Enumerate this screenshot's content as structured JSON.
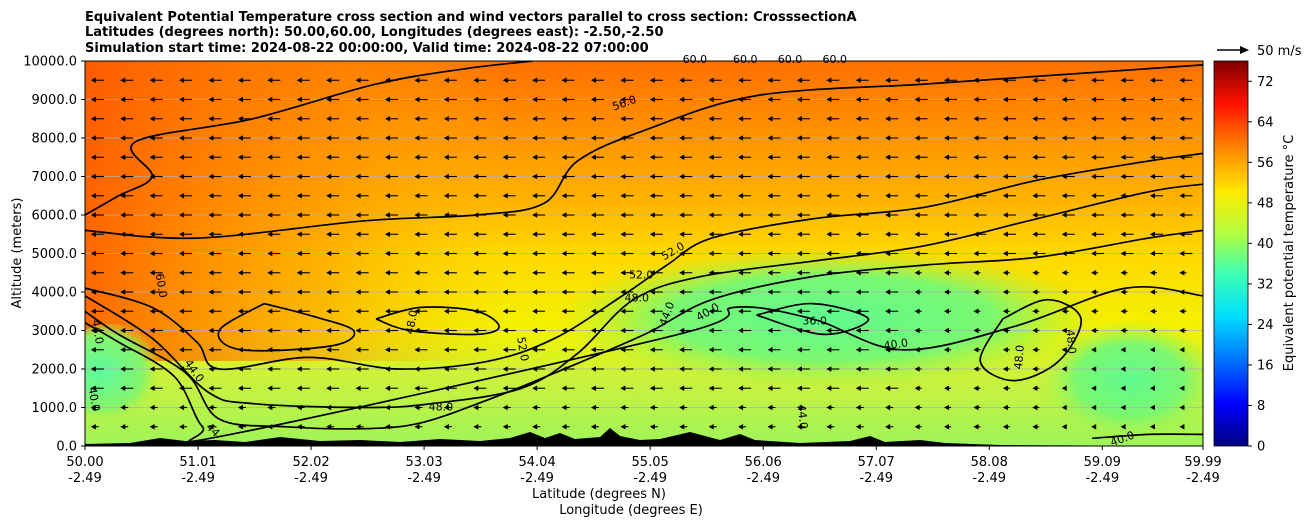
{
  "chart_data": {
    "type": "contour",
    "title_lines": [
      "Equivalent Potential Temperature cross section and wind vectors parallel to cross section: CrosssectionA",
      "Latitudes (degrees north): 50.00,60.00, Longitudes (degrees east): -2.50,-2.50",
      "Simulation start time: 2024-08-22 00:00:00, Valid time: 2024-08-22 07:00:00"
    ],
    "xlabel_primary": "Latitude (degrees N)",
    "xlabel_secondary": "Longitude (degrees E)",
    "ylabel": "Altitude (meters)",
    "x_ticks": [
      {
        "lat": "50.00",
        "lon": "-2.49",
        "value": 50.0
      },
      {
        "lat": "51.01",
        "lon": "-2.49",
        "value": 51.01
      },
      {
        "lat": "52.02",
        "lon": "-2.49",
        "value": 52.02
      },
      {
        "lat": "53.03",
        "lon": "-2.49",
        "value": 53.03
      },
      {
        "lat": "54.04",
        "lon": "-2.49",
        "value": 54.04
      },
      {
        "lat": "55.05",
        "lon": "-2.49",
        "value": 55.05
      },
      {
        "lat": "56.06",
        "lon": "-2.49",
        "value": 56.06
      },
      {
        "lat": "57.07",
        "lon": "-2.49",
        "value": 57.07
      },
      {
        "lat": "58.08",
        "lon": "-2.49",
        "value": 58.08
      },
      {
        "lat": "59.09",
        "lon": "-2.49",
        "value": 59.09
      },
      {
        "lat": "59.99",
        "lon": "-2.49",
        "value": 59.99
      }
    ],
    "y_ticks": [
      "0.0",
      "1000.0",
      "2000.0",
      "3000.0",
      "4000.0",
      "5000.0",
      "6000.0",
      "7000.0",
      "8000.0",
      "9000.0",
      "10000.0"
    ],
    "xlim": [
      50.0,
      59.99
    ],
    "ylim": [
      0,
      10000
    ],
    "grid": "horizontal",
    "colorbar": {
      "label": "Equivalent potential temperature °C",
      "ticks": [
        "0",
        "8",
        "16",
        "24",
        "32",
        "40",
        "48",
        "56",
        "64",
        "72"
      ],
      "range": [
        0,
        76
      ]
    },
    "wind_key": {
      "label": "50 m/s",
      "value": 50
    },
    "contour_levels": [
      36,
      40,
      44,
      48,
      52,
      56,
      60
    ],
    "contour_labels": [
      {
        "text": "60.0",
        "lat": 50.65,
        "alt": 4150,
        "rot": 80
      },
      {
        "text": "44.0",
        "lat": 50.08,
        "alt": 2950,
        "rot": 80
      },
      {
        "text": "40.0",
        "lat": 50.05,
        "alt": 1200,
        "rot": 80
      },
      {
        "text": "44.0",
        "lat": 50.95,
        "alt": 1900,
        "rot": 55
      },
      {
        "text": "44",
        "lat": 51.12,
        "alt": 350,
        "rot": 45
      },
      {
        "text": "48.0",
        "lat": 52.95,
        "alt": 3200,
        "rot": -80
      },
      {
        "text": "48.0",
        "lat": 53.18,
        "alt": 920,
        "rot": 0
      },
      {
        "text": "52.0",
        "lat": 53.88,
        "alt": 2500,
        "rot": 80
      },
      {
        "text": "52.0",
        "lat": 54.97,
        "alt": 4350,
        "rot": 0
      },
      {
        "text": "52.0",
        "lat": 55.27,
        "alt": 4980,
        "rot": -30
      },
      {
        "text": "48.0",
        "lat": 54.93,
        "alt": 3750,
        "rot": 0
      },
      {
        "text": "44.0",
        "lat": 55.23,
        "alt": 3400,
        "rot": -70
      },
      {
        "text": "40.0",
        "lat": 55.58,
        "alt": 3400,
        "rot": -30
      },
      {
        "text": "56.0",
        "lat": 54.83,
        "alt": 8820,
        "rot": -20
      },
      {
        "text": "36.0",
        "lat": 56.52,
        "alt": 3150,
        "rot": 0
      },
      {
        "text": "40.0",
        "lat": 57.25,
        "alt": 2550,
        "rot": -8
      },
      {
        "text": "44.0",
        "lat": 56.38,
        "alt": 750,
        "rot": 85
      },
      {
        "text": "48.0",
        "lat": 58.38,
        "alt": 2300,
        "rot": -85
      },
      {
        "text": "48.0",
        "lat": 58.78,
        "alt": 2700,
        "rot": 85
      },
      {
        "text": "40.0",
        "lat": 59.28,
        "alt": 100,
        "rot": -20
      },
      {
        "text": "60.0",
        "lat": 55.45,
        "alt": 9950,
        "rot": 0
      },
      {
        "text": "60.0",
        "lat": 55.9,
        "alt": 9950,
        "rot": 0
      },
      {
        "text": "60.0",
        "lat": 56.3,
        "alt": 9950,
        "rot": 0
      },
      {
        "text": "60.0",
        "lat": 56.7,
        "alt": 9950,
        "rot": 0
      }
    ],
    "contour_lines": [
      {
        "level": 60,
        "points": [
          [
            50.0,
            6000
          ],
          [
            50.3,
            6500
          ],
          [
            50.6,
            7000
          ],
          [
            50.45,
            7900
          ],
          [
            51.5,
            8500
          ],
          [
            52.6,
            9400
          ],
          [
            53.4,
            9800
          ],
          [
            54.0,
            10000
          ]
        ]
      },
      {
        "level": 56,
        "points": [
          [
            50.0,
            5600
          ],
          [
            51.0,
            5400
          ],
          [
            52.5,
            5850
          ],
          [
            53.5,
            6000
          ],
          [
            54.1,
            6300
          ],
          [
            54.4,
            7400
          ],
          [
            55.0,
            8200
          ],
          [
            56.0,
            9100
          ],
          [
            57.5,
            9400
          ],
          [
            58.5,
            9600
          ],
          [
            59.99,
            9900
          ]
        ]
      },
      {
        "level": 52,
        "points": [
          [
            50.0,
            4100
          ],
          [
            50.6,
            3600
          ],
          [
            51.0,
            2700
          ],
          [
            51.2,
            2000
          ],
          [
            52.0,
            2300
          ],
          [
            52.8,
            2000
          ],
          [
            53.6,
            2200
          ],
          [
            54.2,
            2800
          ],
          [
            54.8,
            3900
          ],
          [
            55.2,
            4700
          ],
          [
            55.6,
            5400
          ],
          [
            56.5,
            5900
          ],
          [
            57.5,
            6200
          ],
          [
            58.5,
            6900
          ],
          [
            59.5,
            7400
          ],
          [
            59.99,
            7600
          ]
        ]
      },
      {
        "level": 48,
        "points": [
          [
            50.0,
            3900
          ],
          [
            50.6,
            2800
          ],
          [
            51.1,
            1400
          ],
          [
            51.5,
            1100
          ],
          [
            52.5,
            1000
          ],
          [
            53.1,
            1100
          ],
          [
            53.9,
            1500
          ],
          [
            54.4,
            2400
          ],
          [
            54.9,
            3800
          ],
          [
            55.5,
            4400
          ],
          [
            56.5,
            4800
          ],
          [
            57.5,
            5200
          ],
          [
            58.5,
            5900
          ],
          [
            59.5,
            6600
          ],
          [
            59.99,
            6800
          ]
        ]
      },
      {
        "level": 44,
        "points": [
          [
            50.0,
            3500
          ],
          [
            50.3,
            2900
          ],
          [
            50.9,
            1900
          ],
          [
            51.2,
            700
          ],
          [
            51.8,
            500
          ],
          [
            52.5,
            450
          ],
          [
            53.0,
            600
          ],
          [
            53.6,
            1200
          ],
          [
            54.2,
            1900
          ],
          [
            55.0,
            2900
          ],
          [
            55.6,
            3800
          ],
          [
            56.5,
            4400
          ],
          [
            57.5,
            4700
          ],
          [
            58.5,
            4900
          ],
          [
            59.5,
            5400
          ],
          [
            59.99,
            5600
          ]
        ]
      },
      {
        "level": 40,
        "points": [
          [
            50.0,
            3200
          ],
          [
            50.3,
            2700
          ],
          [
            50.8,
            1800
          ],
          [
            51.05,
            500
          ],
          [
            51.3,
            300
          ],
          [
            55.3,
            2900
          ],
          [
            55.8,
            3600
          ],
          [
            56.5,
            3300
          ],
          [
            57.3,
            2500
          ],
          [
            58.3,
            3100
          ],
          [
            59.3,
            4100
          ],
          [
            59.99,
            3900
          ]
        ]
      },
      {
        "level": 36,
        "points": [
          [
            56.0,
            3400
          ],
          [
            56.5,
            3700
          ],
          [
            57.0,
            3300
          ],
          [
            56.6,
            2900
          ],
          [
            56.0,
            3400
          ]
        ]
      },
      {
        "level": 40,
        "points": [
          [
            59.0,
            200
          ],
          [
            59.5,
            300
          ],
          [
            59.99,
            300
          ]
        ]
      },
      {
        "level": 48,
        "points": [
          [
            52.6,
            3300
          ],
          [
            53.0,
            3600
          ],
          [
            53.5,
            3500
          ],
          [
            53.7,
            3100
          ],
          [
            53.5,
            2900
          ],
          [
            52.9,
            3000
          ],
          [
            52.6,
            3300
          ]
        ]
      },
      {
        "level": 56,
        "points": [
          [
            51.6,
            3700
          ],
          [
            52.0,
            3400
          ],
          [
            52.4,
            3000
          ],
          [
            52.2,
            2600
          ],
          [
            51.4,
            2500
          ],
          [
            51.2,
            3000
          ],
          [
            51.6,
            3700
          ]
        ]
      },
      {
        "level": 48,
        "points": [
          [
            58.2,
            3300
          ],
          [
            58.6,
            3800
          ],
          [
            58.9,
            3300
          ],
          [
            58.7,
            2200
          ],
          [
            58.3,
            1700
          ],
          [
            58.0,
            2200
          ],
          [
            58.2,
            3300
          ]
        ]
      }
    ]
  }
}
